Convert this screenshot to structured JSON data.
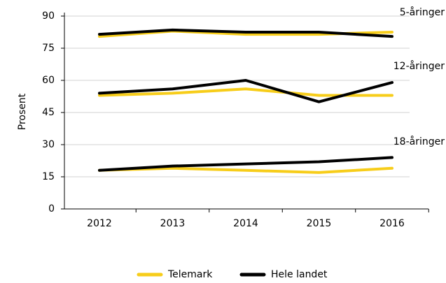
{
  "chart_data": {
    "type": "line",
    "ylabel": "Prosent",
    "categories": [
      "2012",
      "2013",
      "2014",
      "2015",
      "2016"
    ],
    "annotations": [
      "5-åringer",
      "12-åringer",
      "18-åringer"
    ],
    "series": [
      {
        "name": "Telemark",
        "color": "#f7cd1a",
        "lines": [
          [
            80.5,
            83,
            81.5,
            81.5,
            82.5
          ],
          [
            53,
            54,
            56,
            53,
            53
          ],
          [
            18,
            19,
            18,
            17,
            19
          ]
        ]
      },
      {
        "name": "Hele landet",
        "color": "#000000",
        "lines": [
          [
            81.5,
            83.5,
            82.5,
            82.5,
            80.5
          ],
          [
            54,
            56,
            60,
            50,
            59
          ],
          [
            18,
            20,
            21,
            22,
            24
          ]
        ]
      }
    ],
    "ylim": [
      0,
      90
    ],
    "yticks": [
      0,
      15,
      30,
      45,
      60,
      75,
      90
    ],
    "grid": true
  }
}
